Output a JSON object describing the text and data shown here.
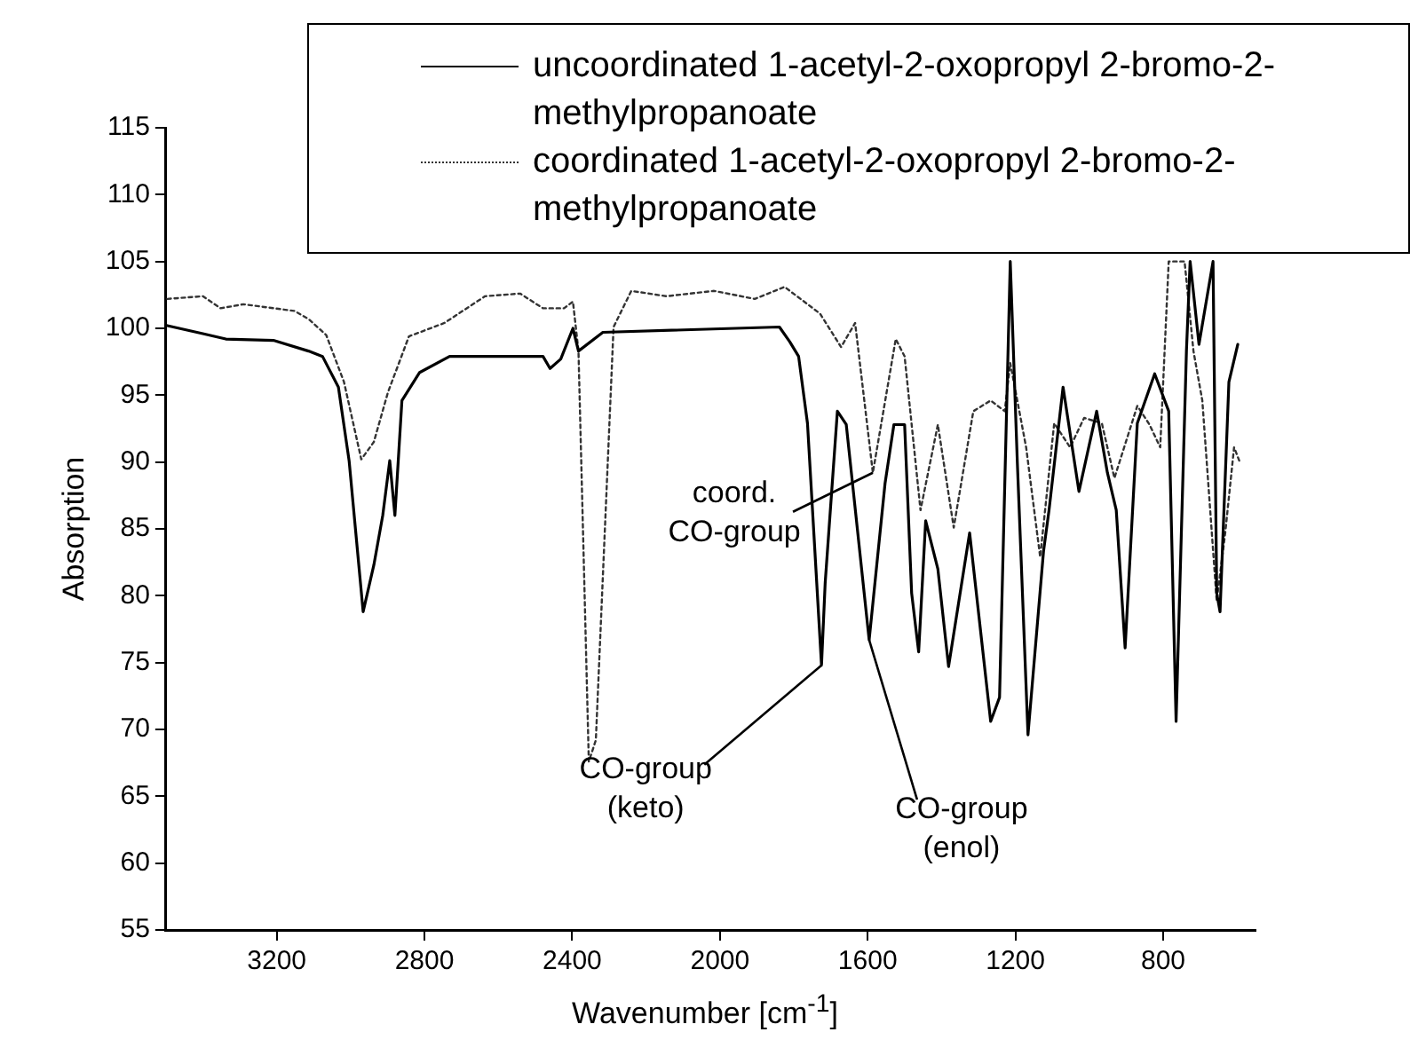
{
  "chart_data": {
    "type": "line",
    "xlabel": "Wavenumber [cm$^{-1}$]",
    "ylabel": "Absorption",
    "xlim": [
      3500,
      550
    ],
    "ylim": [
      55,
      115
    ],
    "xticks": [
      3200,
      2800,
      2400,
      2000,
      1600,
      1200,
      800
    ],
    "yticks": [
      55,
      60,
      65,
      70,
      75,
      80,
      85,
      90,
      95,
      100,
      105,
      110,
      115
    ],
    "grid": false,
    "legend": "top right",
    "marker": "none",
    "series": [
      {
        "name": "uncoordinated 1-acetyl-2-oxopropyl 2-bromo-2-methylpropanoate",
        "color": "#000000",
        "line_style": "solid",
        "x": [
          3496,
          3400,
          3338,
          3209,
          3114,
          3076,
          3033,
          3004,
          2966,
          2937,
          2913,
          2894,
          2880,
          2861,
          2813,
          2732,
          2479,
          2460,
          2431,
          2398,
          2383,
          2317,
          1839,
          1811,
          1787,
          1763,
          1725,
          1715,
          1682,
          1658,
          1596,
          1553,
          1529,
          1500,
          1481,
          1462,
          1443,
          1410,
          1381,
          1324,
          1267,
          1243,
          1214,
          1195,
          1166,
          1124,
          1109,
          1071,
          1028,
          980,
          951,
          927,
          903,
          870,
          823,
          785,
          765,
          737,
          727,
          703,
          665,
          655,
          646,
          622,
          598
        ],
        "values": [
          100.2,
          99.6,
          99.2,
          99.1,
          98.3,
          97.9,
          95.6,
          90.1,
          78.8,
          82.3,
          86.0,
          90.1,
          86.0,
          94.6,
          96.7,
          97.9,
          97.9,
          97.0,
          97.7,
          100.0,
          98.3,
          99.7,
          100.1,
          99.0,
          97.9,
          92.9,
          74.8,
          81.0,
          93.8,
          92.8,
          76.7,
          88.4,
          92.8,
          92.8,
          80.2,
          75.8,
          85.6,
          82.0,
          74.7,
          84.7,
          70.6,
          72.4,
          105,
          90.1,
          69.6,
          83.3,
          86.4,
          95.6,
          87.8,
          93.8,
          89.2,
          86.4,
          76.1,
          92.9,
          96.6,
          93.8,
          70.6,
          98.3,
          105,
          98.8,
          105,
          80.2,
          78.8,
          96.0,
          98.8
        ]
      },
      {
        "name": "coordinated 1-acetyl-2-oxopropyl 2-bromo-2-methylpropanoate",
        "color": "#333333",
        "line_style": "dotted",
        "x": [
          3496,
          3400,
          3352,
          3290,
          3152,
          3114,
          3066,
          3018,
          2971,
          2937,
          2899,
          2842,
          2746,
          2636,
          2541,
          2479,
          2422,
          2398,
          2383,
          2355,
          2336,
          2288,
          2240,
          2145,
          2016,
          1906,
          1825,
          1729,
          1672,
          1634,
          1586,
          1524,
          1500,
          1457,
          1410,
          1367,
          1314,
          1267,
          1229,
          1214,
          1171,
          1133,
          1095,
          1052,
          1014,
          966,
          932,
          870,
          837,
          808,
          785,
          742,
          718,
          694,
          655,
          632,
          608,
          594
        ],
        "values": [
          102.2,
          102.4,
          101.5,
          101.8,
          101.3,
          100.7,
          99.5,
          96.0,
          90.2,
          91.5,
          95.2,
          99.4,
          100.4,
          102.4,
          102.6,
          101.5,
          101.5,
          102.0,
          98.3,
          67.6,
          69.2,
          100.1,
          102.8,
          102.4,
          102.8,
          102.2,
          103.1,
          101.1,
          98.6,
          100.4,
          89.2,
          99.2,
          97.9,
          86.4,
          92.8,
          85.1,
          93.8,
          94.6,
          93.8,
          97.4,
          91.1,
          82.9,
          92.9,
          91.1,
          93.3,
          92.9,
          88.8,
          94.2,
          92.8,
          91.1,
          105,
          105,
          98.3,
          94.6,
          79.6,
          84.7,
          91.1,
          90.1
        ]
      }
    ],
    "annotations": [
      {
        "text": "coord.\nCO-group",
        "x": 1586,
        "y": 89.2
      },
      {
        "text": "CO-group\n(keto)",
        "x": 1725,
        "y": 74.8
      },
      {
        "text": "CO-group\n(enol)",
        "x": 1596,
        "y": 76.7
      }
    ]
  }
}
